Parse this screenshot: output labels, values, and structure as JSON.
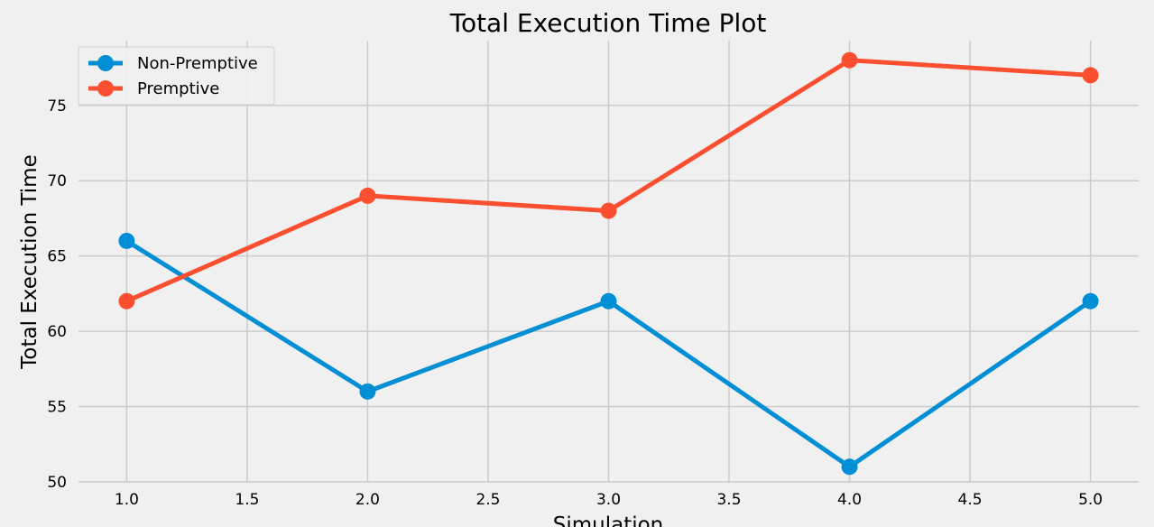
{
  "chart_data": {
    "type": "line",
    "title": "Total Execution Time Plot",
    "xlabel": "Simulation",
    "ylabel": "Total Execution Time",
    "x": [
      1.0,
      2.0,
      3.0,
      4.0,
      5.0
    ],
    "series": [
      {
        "name": "Non-Premptive",
        "values": [
          66,
          56,
          62,
          51,
          62
        ],
        "color": "#008fd5"
      },
      {
        "name": "Premptive",
        "values": [
          62,
          69,
          68,
          78,
          77
        ],
        "color": "#fc4f30"
      }
    ],
    "xlim": [
      0.8,
      5.2
    ],
    "ylim": [
      50,
      79.3
    ],
    "xticks": [
      "1.0",
      "1.5",
      "2.0",
      "2.5",
      "3.0",
      "3.5",
      "4.0",
      "4.5",
      "5.0"
    ],
    "yticks": [
      "50",
      "55",
      "60",
      "65",
      "70",
      "75"
    ],
    "grid": true,
    "legend_position": "top-left",
    "style": "fivethirtyeight"
  }
}
